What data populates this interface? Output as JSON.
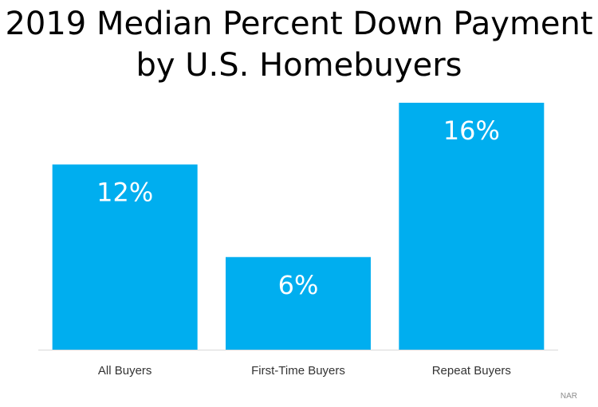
{
  "title_lines": [
    "2019 Median Percent Down Payment",
    "by U.S. Homebuyers"
  ],
  "source": "NAR",
  "colors": {
    "bar": "#00AEEF",
    "bar_label": "#ffffff",
    "axis": "#d9d9d9",
    "tick_label": "#333333"
  },
  "chart_data": {
    "type": "bar",
    "title": "2019 Median Percent Down Payment by U.S. Homebuyers",
    "categories": [
      "All Buyers",
      "First-Time Buyers",
      "Repeat Buyers"
    ],
    "values": [
      12,
      6,
      16
    ],
    "data_labels": [
      "12%",
      "6%",
      "16%"
    ],
    "xlabel": "",
    "ylabel": "",
    "ylim": [
      0,
      16
    ],
    "grid": false,
    "legend": "none"
  }
}
